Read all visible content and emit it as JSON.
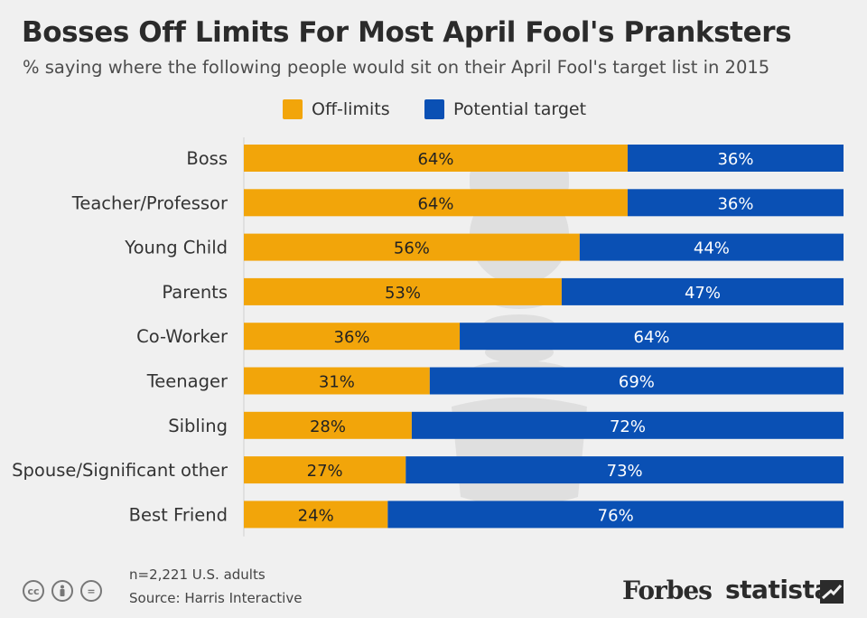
{
  "header": {
    "title": "Bosses Off Limits For Most April Fool's Pranksters",
    "subtitle": "% saying where the following people would sit on their April Fool's target list in 2015"
  },
  "legend": {
    "off_limits": "Off-limits",
    "potential_target": "Potential target"
  },
  "colors": {
    "off_limits": "#f2a50a",
    "potential_target": "#0a50b4",
    "background": "#f0f0f0"
  },
  "chart_data": {
    "type": "bar",
    "stacked": true,
    "orientation": "horizontal",
    "categories": [
      "Boss",
      "Teacher/Professor",
      "Young Child",
      "Parents",
      "Co-Worker",
      "Teenager",
      "Sibling",
      "Spouse/Significant other",
      "Best Friend"
    ],
    "series": [
      {
        "name": "Off-limits",
        "values": [
          64,
          64,
          56,
          53,
          36,
          31,
          28,
          27,
          24
        ]
      },
      {
        "name": "Potential target",
        "values": [
          36,
          36,
          44,
          47,
          64,
          69,
          72,
          73,
          76
        ]
      }
    ],
    "value_suffix": "%",
    "xlim": [
      0,
      100
    ],
    "legend_position": "top",
    "grid": false
  },
  "footer": {
    "note": "n=2,221 U.S. adults",
    "source": "Source: Harris Interactive",
    "brand_forbes": "Forbes",
    "brand_statista": "statista",
    "cc_icons": [
      "cc",
      "by",
      "="
    ]
  }
}
